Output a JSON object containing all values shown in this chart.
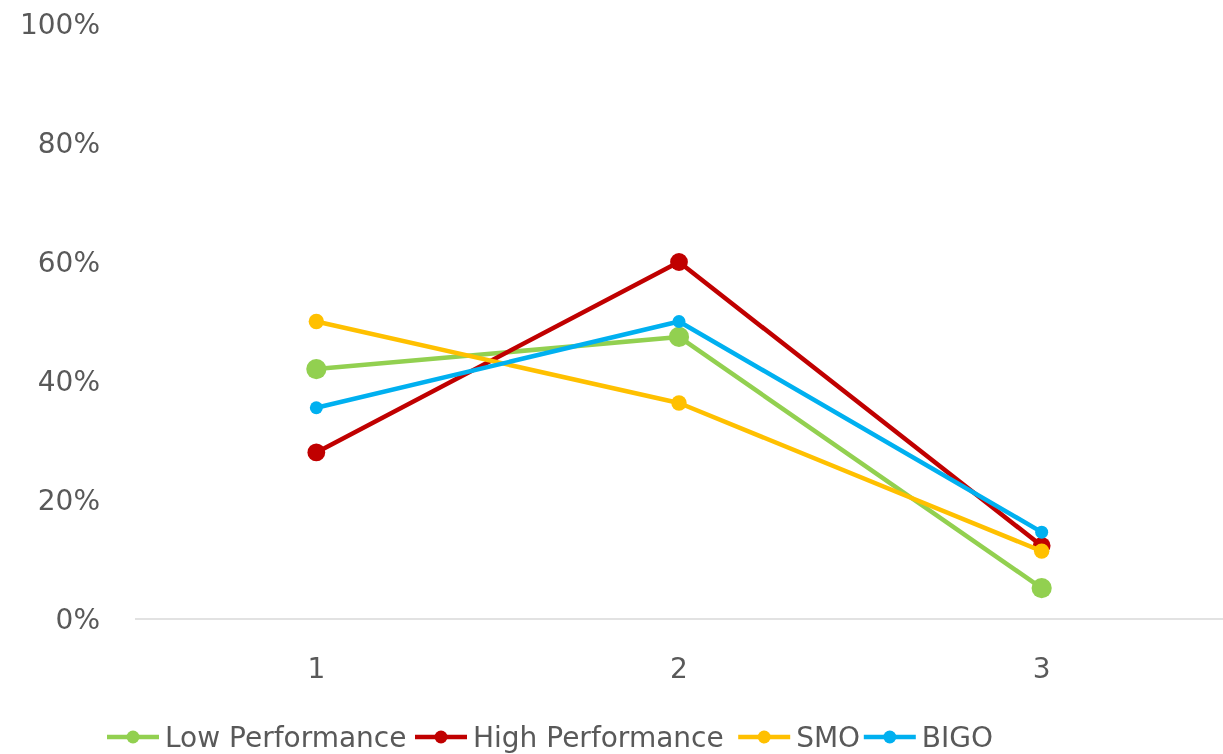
{
  "chart_data": {
    "type": "line",
    "categories": [
      "1",
      "2",
      "3"
    ],
    "series": [
      {
        "name": "Low Performance",
        "color": "#92d050",
        "values": [
          42,
          47.4,
          5.2
        ]
      },
      {
        "name": "High Performance",
        "color": "#c00000",
        "values": [
          28,
          60,
          12.3
        ]
      },
      {
        "name": "SMO",
        "color": "#ffc000",
        "values": [
          50,
          36.3,
          11.4
        ]
      },
      {
        "name": "BIGO",
        "color": "#00b0f0",
        "values": [
          35.5,
          50,
          14.6
        ]
      }
    ],
    "ylim": [
      0,
      100
    ],
    "yticks": [
      {
        "value": 0,
        "label": "0%"
      },
      {
        "value": 20,
        "label": "20%"
      },
      {
        "value": 40,
        "label": "40%"
      },
      {
        "value": 60,
        "label": "60%"
      },
      {
        "value": 80,
        "label": "80%"
      },
      {
        "value": 100,
        "label": "100%"
      }
    ],
    "grid": false,
    "legend": "bottom",
    "marker": "circle",
    "line_style": "solid"
  }
}
